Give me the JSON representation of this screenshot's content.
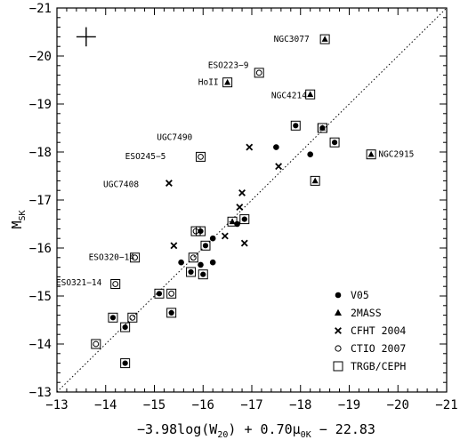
{
  "chart_data": {
    "type": "scatter",
    "xlabel": "−3.98log(W20) + 0.70μ0K − 22.83",
    "xlabel_parts": {
      "a": "−3.98log(W",
      "a_sub": "20",
      "b": ") + 0.70μ",
      "b_sub": "0K",
      "c": " − 22.83"
    },
    "ylabel": "MSK",
    "ylabel_parts": {
      "main": "M",
      "sub": "SK"
    },
    "xlim": [
      -13,
      -21
    ],
    "ylim": [
      -13,
      -21
    ],
    "xticks": [
      -13,
      -14,
      -15,
      -16,
      -17,
      -18,
      -19,
      -20,
      -21
    ],
    "xtick_labels": [
      "−13",
      "−14",
      "−15",
      "−16",
      "−17",
      "−18",
      "−19",
      "−20",
      "−21"
    ],
    "yticks": [
      -13,
      -14,
      -15,
      -16,
      -17,
      -18,
      -19,
      -20,
      -21
    ],
    "ytick_labels": [
      "−13",
      "−14",
      "−15",
      "−16",
      "−17",
      "−18",
      "−19",
      "−20",
      "−21"
    ],
    "reference_line": {
      "style": "dotted",
      "relation": "y = x"
    },
    "error_bar_cross": {
      "x": -13.6,
      "y": -20.4,
      "dx": 0.2,
      "dy": 0.2
    },
    "legend": {
      "position": "bottom-right",
      "entries": [
        {
          "marker": "filled-circle",
          "label": "V05"
        },
        {
          "marker": "filled-triangle",
          "label": "2MASS"
        },
        {
          "marker": "cross",
          "label": "CFHT 2004"
        },
        {
          "marker": "open-circle",
          "label": "CTIO 2007"
        },
        {
          "marker": "open-square",
          "label": "TRGB/CEPH"
        }
      ]
    },
    "series": [
      {
        "name": "V05",
        "marker": "filled-circle",
        "points": [
          {
            "x": -15.55,
            "y": -15.7
          },
          {
            "x": -15.95,
            "y": -15.65
          },
          {
            "x": -16.2,
            "y": -15.7
          },
          {
            "x": -16.2,
            "y": -16.2
          },
          {
            "x": -16.7,
            "y": -16.5
          },
          {
            "x": -17.5,
            "y": -18.1
          },
          {
            "x": -18.2,
            "y": -17.95
          }
        ]
      },
      {
        "name": "V05 + TRGB/CEPH",
        "marker": "filled-circle-in-square",
        "points": [
          {
            "x": -14.15,
            "y": -14.55
          },
          {
            "x": -14.4,
            "y": -14.35
          },
          {
            "x": -14.4,
            "y": -13.6
          },
          {
            "x": -15.1,
            "y": -15.05
          },
          {
            "x": -15.35,
            "y": -14.65
          },
          {
            "x": -15.75,
            "y": -15.5
          },
          {
            "x": -15.95,
            "y": -16.35
          },
          {
            "x": -16.0,
            "y": -15.45
          },
          {
            "x": -16.05,
            "y": -16.05
          },
          {
            "x": -16.85,
            "y": -16.6
          },
          {
            "x": -17.9,
            "y": -18.55
          },
          {
            "x": -18.45,
            "y": -18.5
          },
          {
            "x": -18.7,
            "y": -18.2
          }
        ]
      },
      {
        "name": "2MASS + TRGB/CEPH",
        "marker": "filled-triangle-in-square",
        "points": [
          {
            "x": -16.5,
            "y": -19.45
          },
          {
            "x": -16.6,
            "y": -16.55
          },
          {
            "x": -18.2,
            "y": -19.2
          },
          {
            "x": -18.3,
            "y": -17.4
          },
          {
            "x": -18.45,
            "y": -18.5
          },
          {
            "x": -18.5,
            "y": -20.35
          },
          {
            "x": -19.45,
            "y": -17.95
          }
        ]
      },
      {
        "name": "CFHT 2004",
        "marker": "cross",
        "points": [
          {
            "x": -15.3,
            "y": -17.35
          },
          {
            "x": -15.4,
            "y": -16.05
          },
          {
            "x": -16.45,
            "y": -16.25
          },
          {
            "x": -16.75,
            "y": -16.85
          },
          {
            "x": -16.8,
            "y": -17.15
          },
          {
            "x": -16.85,
            "y": -16.1
          },
          {
            "x": -16.95,
            "y": -18.1
          },
          {
            "x": -17.55,
            "y": -17.7
          }
        ]
      },
      {
        "name": "CTIO 2007 + TRGB/CEPH",
        "marker": "open-circle-in-square",
        "points": [
          {
            "x": -13.8,
            "y": -14.0
          },
          {
            "x": -14.2,
            "y": -15.25
          },
          {
            "x": -14.55,
            "y": -14.55
          },
          {
            "x": -14.6,
            "y": -15.8
          },
          {
            "x": -15.35,
            "y": -15.05
          },
          {
            "x": -15.8,
            "y": -15.8
          },
          {
            "x": -15.85,
            "y": -16.35
          },
          {
            "x": -15.95,
            "y": -17.9
          },
          {
            "x": -17.15,
            "y": -19.65
          }
        ]
      }
    ],
    "annotations": [
      {
        "text": "NGC3077",
        "x": -17.45,
        "y": -20.3,
        "anchor": "start"
      },
      {
        "text": "ESO223−9",
        "x": -16.1,
        "y": -19.75,
        "anchor": "start"
      },
      {
        "text": "HoII",
        "x": -15.9,
        "y": -19.4,
        "anchor": "start"
      },
      {
        "text": "NGC4214",
        "x": -17.4,
        "y": -19.12,
        "anchor": "start"
      },
      {
        "text": "UGC7490",
        "x": -15.05,
        "y": -18.25,
        "anchor": "start"
      },
      {
        "text": "ESO245−5",
        "x": -14.4,
        "y": -17.85,
        "anchor": "start"
      },
      {
        "text": "NGC2915",
        "x": -19.6,
        "y": -17.9,
        "anchor": "start"
      },
      {
        "text": "UGC7408",
        "x": -13.95,
        "y": -17.27,
        "anchor": "start"
      },
      {
        "text": "ESO320−14",
        "x": -13.65,
        "y": -15.75,
        "anchor": "start"
      },
      {
        "text": "ESO321−14",
        "x": -12.98,
        "y": -15.22,
        "anchor": "start"
      }
    ]
  }
}
